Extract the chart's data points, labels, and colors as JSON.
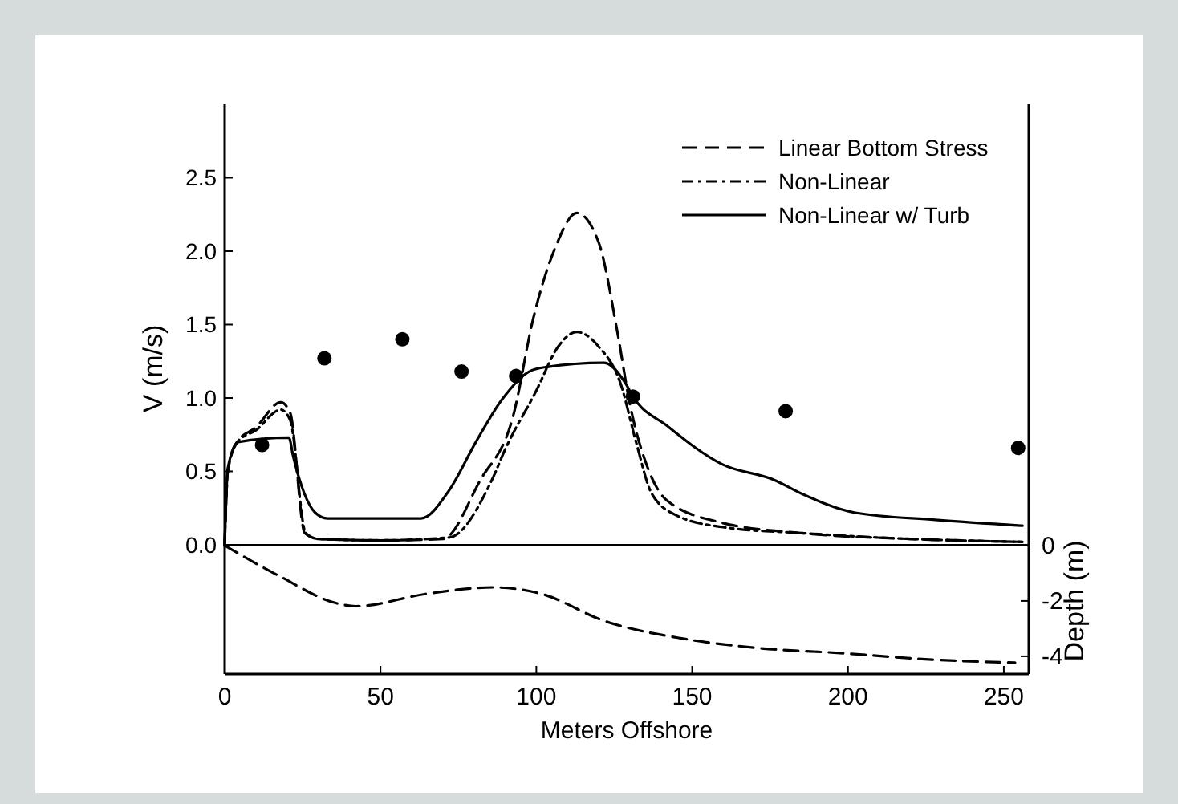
{
  "chart_data": {
    "type": "line",
    "xlabel": "Meters Offshore",
    "ylabel": "V  (m/s)",
    "y2label": "Depth (m)",
    "xlim": [
      0,
      258
    ],
    "xticks": [
      0,
      50,
      100,
      150,
      200,
      250
    ],
    "ylim": [
      -0.88,
      3.0
    ],
    "yticks": [
      {
        "value": 0,
        "label": "0.0"
      },
      {
        "value": 0.5,
        "label": "0.5"
      },
      {
        "value": 1,
        "label": "1.0"
      },
      {
        "value": 1.5,
        "label": "1.5"
      },
      {
        "value": 2,
        "label": "2.0"
      },
      {
        "value": 2.5,
        "label": "2.5"
      }
    ],
    "y2lim": [
      -4.64,
      15.94
    ],
    "y2ticks": [
      0,
      -2,
      -4
    ],
    "legend": "top right",
    "ref_lines": [
      {
        "axis": "y",
        "value": 0,
        "color": "#000000",
        "line_style": "solid"
      }
    ],
    "series": [
      {
        "name": "Linear Bottom Stress",
        "color": "#000000",
        "line_style": "dashed",
        "x": [
          0,
          1,
          4,
          10,
          18,
          21,
          25.7,
          30,
          50,
          70,
          82,
          92.6,
          99,
          106,
          113,
          120,
          126,
          130,
          136,
          142,
          159.5,
          185,
          220,
          256
        ],
        "values": [
          0,
          0.5,
          0.7,
          0.8,
          0.97,
          0.9,
          0.08,
          0.04,
          0.03,
          0.04,
          0.44,
          0.88,
          1.54,
          2.02,
          2.26,
          2.06,
          1.45,
          0.96,
          0.51,
          0.3,
          0.15,
          0.08,
          0.04,
          0.02
        ]
      },
      {
        "name": "Non-Linear",
        "color": "#000000",
        "line_style": "dotted",
        "x": [
          0,
          1,
          4,
          10,
          18,
          21,
          26,
          30,
          50,
          72,
          85.7,
          90,
          100,
          107,
          113,
          120,
          127,
          132,
          137,
          145,
          160,
          185,
          220,
          256
        ],
        "values": [
          0,
          0.5,
          0.7,
          0.78,
          0.92,
          0.85,
          0.08,
          0.04,
          0.03,
          0.05,
          0.44,
          0.65,
          1.05,
          1.35,
          1.45,
          1.35,
          1.1,
          0.7,
          0.35,
          0.2,
          0.12,
          0.08,
          0.04,
          0.02
        ]
      },
      {
        "name": "Non-Linear w/ Turb",
        "color": "#000000",
        "line_style": "solid",
        "x": [
          0,
          1,
          4.3,
          20.6,
          22,
          29,
          33,
          63,
          72,
          80.6,
          89,
          97.7,
          103,
          121.7,
          128.6,
          131,
          142,
          159.5,
          176.5,
          185,
          202,
          228,
          256
        ],
        "values": [
          0,
          0.52,
          0.7,
          0.73,
          0.6,
          0.22,
          0.18,
          0.18,
          0.37,
          0.7,
          0.99,
          1.18,
          1.21,
          1.24,
          1.1,
          1.01,
          0.81,
          0.55,
          0.44,
          0.35,
          0.22,
          0.17,
          0.13
        ]
      },
      {
        "type": "scatter",
        "color": "#000000",
        "marker": "circle",
        "x": [
          12,
          32,
          57,
          76,
          93.5,
          131,
          180,
          254.6
        ],
        "values": [
          0.68,
          1.27,
          1.4,
          1.18,
          1.15,
          1.01,
          0.91,
          0.66
        ]
      },
      {
        "axis": "y2",
        "color": "#000000",
        "line_style": "dashed",
        "x": [
          0,
          17.5,
          36.5,
          42,
          65,
          86,
          101.5,
          122,
          147,
          170,
          198.5,
          227,
          253.6
        ],
        "values": [
          0,
          -1.1,
          -2.1,
          -2.19,
          -1.74,
          -1.51,
          -1.74,
          -2.73,
          -3.36,
          -3.69,
          -3.89,
          -4.12,
          -4.23
        ]
      }
    ]
  }
}
